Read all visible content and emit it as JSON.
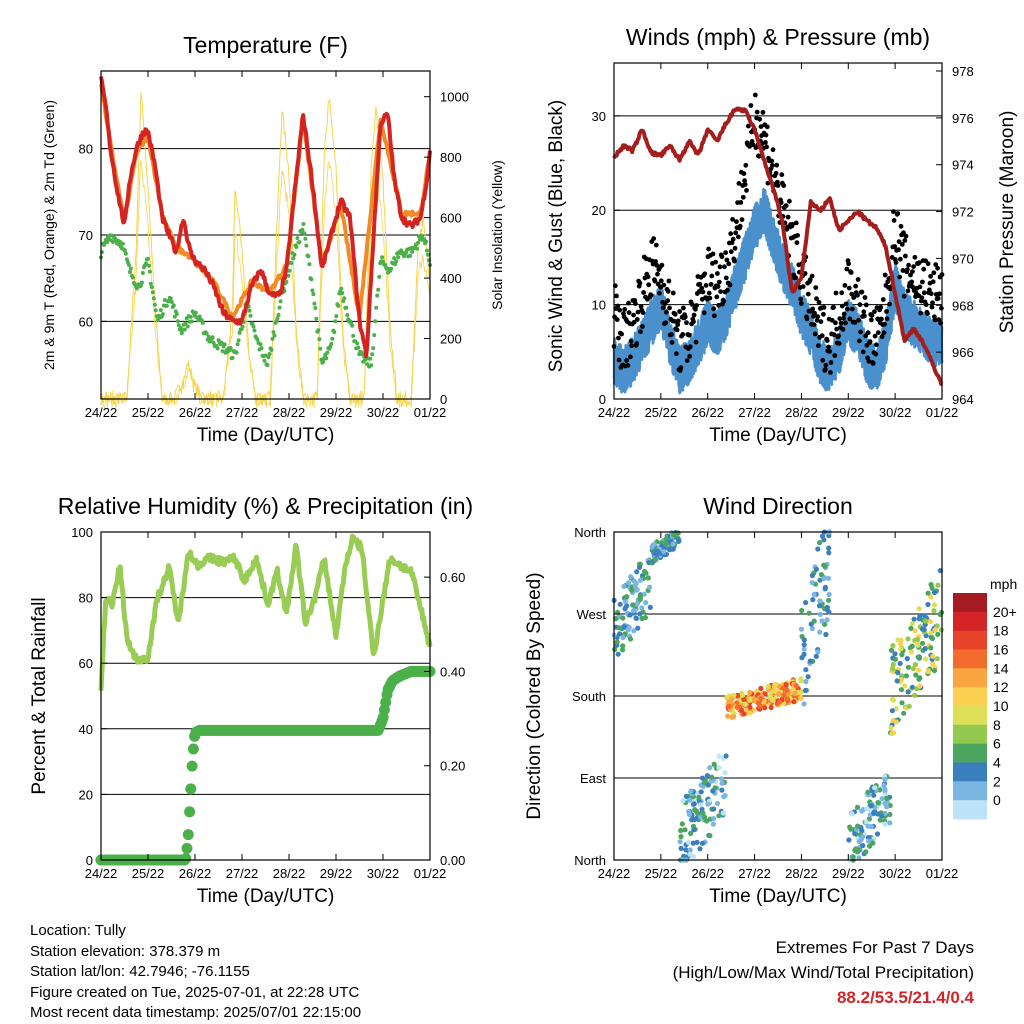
{
  "chart_data": [
    {
      "type": "line",
      "title": "Temperature (F)",
      "xlabel": "Time (Day/UTC)",
      "ylabel": "2m & 9m T (Red, Orange) & 2m Td (Green)",
      "ylabel_right": "Solar Insolation (Yellow)",
      "x_ticks": [
        "24/22",
        "25/22",
        "26/22",
        "27/22",
        "28/22",
        "29/22",
        "30/22",
        "01/22"
      ],
      "y_ticks": [
        "60",
        "70",
        "80"
      ],
      "y_ticks_right": [
        "0",
        "200",
        "400",
        "600",
        "800",
        "1000"
      ],
      "ylim": [
        51,
        89
      ],
      "ylim_right": [
        0,
        1000
      ],
      "grid": "horizontal",
      "series_colors": {
        "t2m": "#d42422",
        "t9m": "#f08a26",
        "td2m": "#4cb04a",
        "solar": "#f6d44c"
      },
      "series": [
        {
          "name": "2m T",
          "axis": "left",
          "x": [
            0,
            0.1,
            0.2,
            0.35,
            0.5,
            0.6,
            0.75,
            0.9,
            1.0,
            1.15,
            1.3,
            1.45,
            1.6,
            1.75,
            1.9,
            2.0,
            2.2,
            2.4,
            2.6,
            2.8,
            3.0,
            3.2,
            3.4,
            3.6,
            3.8,
            3.95,
            4.1,
            4.2,
            4.3,
            4.5,
            4.7,
            4.9,
            5.1,
            5.3,
            5.5,
            5.65,
            5.8,
            5.95,
            6.1,
            6.25,
            6.4,
            6.6,
            6.8,
            6.95,
            7.0
          ],
          "values": [
            88,
            85,
            80,
            75,
            71,
            76,
            80,
            82,
            82,
            78,
            72,
            70,
            68,
            72,
            68,
            67,
            66,
            64,
            61,
            60,
            60,
            64,
            66,
            63,
            63,
            66,
            74,
            79,
            84,
            76,
            66,
            70,
            74,
            72,
            60,
            56,
            70,
            83,
            84,
            76,
            72,
            71,
            72,
            77,
            80
          ]
        },
        {
          "name": "9m T",
          "axis": "left",
          "x": [
            0,
            0.2,
            0.5,
            0.75,
            1.0,
            1.3,
            1.6,
            1.9,
            2.4,
            2.8,
            3.2,
            3.6,
            3.95,
            4.3,
            4.7,
            5.1,
            5.5,
            5.95,
            6.4,
            6.8,
            7.0
          ],
          "values": [
            87.5,
            80.5,
            71.5,
            79.5,
            81.5,
            72.5,
            68.5,
            67.5,
            64.5,
            60.5,
            64.5,
            63.5,
            66.5,
            83.5,
            66.5,
            73.5,
            60.5,
            83.5,
            72.5,
            72.5,
            79.5
          ]
        },
        {
          "name": "2m Td",
          "axis": "left",
          "x": [
            0,
            0.2,
            0.45,
            0.6,
            0.8,
            1.0,
            1.2,
            1.45,
            1.7,
            2.0,
            2.3,
            2.6,
            2.85,
            3.1,
            3.3,
            3.55,
            3.8,
            4.05,
            4.3,
            4.5,
            4.7,
            4.9,
            5.1,
            5.3,
            5.5,
            5.75,
            5.95,
            6.15,
            6.35,
            6.6,
            6.85,
            7.0
          ],
          "values": [
            68,
            70,
            69,
            66,
            64,
            67,
            60,
            63,
            59,
            61,
            58,
            57,
            56,
            62,
            58,
            55,
            62,
            67,
            71,
            64,
            55,
            57,
            64,
            60,
            56,
            55,
            67,
            66,
            68,
            68,
            70,
            67
          ]
        },
        {
          "name": "Solar Insolation",
          "axis": "right",
          "x": [
            0,
            0.3,
            0.55,
            0.75,
            0.85,
            1.0,
            1.15,
            1.3,
            1.55,
            1.75,
            1.85,
            2.0,
            2.15,
            2.3,
            2.6,
            2.8,
            2.85,
            3.0,
            3.15,
            3.3,
            3.6,
            3.75,
            3.85,
            4.0,
            4.15,
            4.3,
            4.6,
            4.75,
            4.85,
            5.0,
            5.15,
            5.3,
            5.6,
            5.75,
            5.85,
            6.0,
            6.15,
            6.3,
            6.6,
            6.75,
            6.85,
            7.0
          ],
          "values": [
            0,
            0,
            0,
            500,
            1020,
            700,
            300,
            0,
            0,
            60,
            120,
            40,
            0,
            0,
            0,
            300,
            700,
            500,
            150,
            0,
            0,
            600,
            960,
            750,
            250,
            0,
            0,
            800,
            1000,
            760,
            200,
            0,
            0,
            780,
            960,
            720,
            230,
            0,
            0,
            500,
            600,
            400
          ]
        }
      ]
    },
    {
      "type": "line",
      "title": "Winds (mph) & Pressure (mb)",
      "xlabel": "Time (Day/UTC)",
      "ylabel": "Sonic Wind & Gust (Blue, Black)",
      "ylabel_right": "Station Pressure (Maroon)",
      "x_ticks": [
        "24/22",
        "25/22",
        "26/22",
        "27/22",
        "28/22",
        "29/22",
        "30/22",
        "01/22"
      ],
      "y_ticks": [
        "0",
        "10",
        "20",
        "30"
      ],
      "y_ticks_right": [
        "964",
        "966",
        "968",
        "970",
        "972",
        "974",
        "976",
        "978"
      ],
      "ylim": [
        0,
        35.6
      ],
      "ylim_right": [
        964,
        978
      ],
      "grid": "horizontal",
      "series_colors": {
        "wind": "#4a90cc",
        "gust": "#000000",
        "pressure": "#a51e1e"
      },
      "series": [
        {
          "name": "Sonic Wind",
          "axis": "left",
          "x": [
            0,
            0.2,
            0.4,
            0.6,
            0.8,
            1.0,
            1.2,
            1.4,
            1.6,
            1.8,
            2.0,
            2.2,
            2.4,
            2.6,
            2.8,
            3.0,
            3.2,
            3.4,
            3.6,
            3.8,
            4.0,
            4.2,
            4.4,
            4.6,
            4.8,
            5.0,
            5.2,
            5.4,
            5.6,
            5.8,
            6.0,
            6.2,
            6.4,
            6.6,
            6.8,
            7.0
          ],
          "values": [
            4,
            3,
            4,
            6,
            8,
            10,
            6,
            3,
            4,
            6,
            8,
            7,
            9,
            12,
            15,
            18,
            20,
            17,
            14,
            12,
            9,
            7,
            4,
            3,
            5,
            8,
            7,
            4,
            3,
            6,
            12,
            9,
            8,
            7,
            6,
            6
          ]
        },
        {
          "name": "Gust",
          "axis": "left",
          "x": [
            0,
            0.2,
            0.4,
            0.6,
            0.8,
            1.0,
            1.2,
            1.4,
            1.6,
            1.8,
            2.0,
            2.2,
            2.4,
            2.6,
            2.8,
            3.0,
            3.2,
            3.4,
            3.6,
            3.8,
            4.0,
            4.2,
            4.4,
            4.6,
            4.8,
            5.0,
            5.2,
            5.4,
            5.6,
            5.8,
            6.0,
            6.2,
            6.4,
            6.6,
            6.8,
            7.0
          ],
          "values": [
            9,
            6,
            8,
            11,
            14,
            13,
            9,
            6,
            7,
            10,
            13,
            12,
            14,
            18,
            24,
            30,
            28,
            24,
            20,
            17,
            13,
            10,
            7,
            6,
            9,
            12,
            10,
            7,
            6,
            10,
            18,
            14,
            13,
            12,
            11,
            11
          ]
        },
        {
          "name": "Station Pressure",
          "axis": "right",
          "x": [
            0,
            0.2,
            0.4,
            0.6,
            0.8,
            1.0,
            1.2,
            1.4,
            1.6,
            1.8,
            2.0,
            2.2,
            2.4,
            2.6,
            2.8,
            3.0,
            3.2,
            3.4,
            3.6,
            3.8,
            4.0,
            4.2,
            4.4,
            4.6,
            4.8,
            5.0,
            5.2,
            5.4,
            5.6,
            5.8,
            6.0,
            6.2,
            6.4,
            6.6,
            6.8,
            7.0
          ],
          "values": [
            974.3,
            974.8,
            974.6,
            975.5,
            974.5,
            974.4,
            974.8,
            974.2,
            975.0,
            974.4,
            975.5,
            975.0,
            975.8,
            976.4,
            976.3,
            975.5,
            974.2,
            973.0,
            971.5,
            968.5,
            969.2,
            972.4,
            972.0,
            972.6,
            971.2,
            971.6,
            972.0,
            971.6,
            971.3,
            970.5,
            968.5,
            966.5,
            967.0,
            966.4,
            965.5,
            964.6
          ]
        }
      ]
    },
    {
      "type": "line",
      "title": "Relative Humidity (%) & Precipitation (in)",
      "xlabel": "Time (Day/UTC)",
      "ylabel": "Percent & Total Rainfall",
      "x_ticks": [
        "24/22",
        "25/22",
        "26/22",
        "27/22",
        "28/22",
        "29/22",
        "30/22",
        "01/22"
      ],
      "y_ticks": [
        "0",
        "20",
        "40",
        "60",
        "80",
        "100"
      ],
      "y_ticks_right": [
        "0.00",
        "0.20",
        "0.40",
        "0.60"
      ],
      "ylim": [
        0,
        100
      ],
      "ylim_right": [
        0,
        0.7
      ],
      "grid": "horizontal",
      "series_colors": {
        "rh": "#99cc55",
        "precip": "#4cb04a"
      },
      "series": [
        {
          "name": "Relative Humidity",
          "axis": "left",
          "x": [
            0,
            0.1,
            0.25,
            0.4,
            0.55,
            0.7,
            0.85,
            1.0,
            1.2,
            1.45,
            1.65,
            1.85,
            2.05,
            2.3,
            2.6,
            2.85,
            3.05,
            3.3,
            3.55,
            3.75,
            3.95,
            4.15,
            4.35,
            4.55,
            4.75,
            5.0,
            5.2,
            5.35,
            5.55,
            5.8,
            5.95,
            6.15,
            6.35,
            6.6,
            6.85,
            7.0
          ],
          "values": [
            52,
            80,
            78,
            90,
            68,
            62,
            61,
            62,
            80,
            89,
            72,
            94,
            90,
            92,
            91,
            92,
            85,
            92,
            78,
            88,
            75,
            96,
            72,
            80,
            92,
            68,
            90,
            98,
            95,
            62,
            75,
            92,
            90,
            88,
            74,
            65
          ]
        },
        {
          "name": "Total Rainfall",
          "axis": "right",
          "x": [
            0,
            0.5,
            1.0,
            1.5,
            1.8,
            1.85,
            1.9,
            1.95,
            2.0,
            2.1,
            2.5,
            3.0,
            4.0,
            5.0,
            5.5,
            5.9,
            6.0,
            6.05,
            6.1,
            6.2,
            6.35,
            6.6,
            7.0
          ],
          "values": [
            0,
            0,
            0,
            0,
            0,
            0.04,
            0.13,
            0.22,
            0.27,
            0.275,
            0.275,
            0.275,
            0.275,
            0.275,
            0.275,
            0.275,
            0.3,
            0.33,
            0.36,
            0.38,
            0.39,
            0.4,
            0.4
          ]
        }
      ]
    },
    {
      "type": "scatter",
      "title": "Wind Direction",
      "xlabel": "Time (Day/UTC)",
      "ylabel": "Direction (Colored By Speed)",
      "x_ticks": [
        "24/22",
        "25/22",
        "26/22",
        "27/22",
        "28/22",
        "29/22",
        "30/22",
        "01/22"
      ],
      "y_tick_labels": [
        "North",
        "East",
        "South",
        "West",
        "North"
      ],
      "y_tick_values": [
        0,
        90,
        180,
        270,
        360
      ],
      "ylim": [
        0,
        360
      ],
      "grid": "horizontal",
      "colorbar": {
        "unit": "mph",
        "labels": [
          "20+",
          "18",
          "16",
          "14",
          "12",
          "10",
          "8",
          "6",
          "4",
          "2",
          "0"
        ],
        "colors": [
          "#a51c20",
          "#d42428",
          "#e8442a",
          "#f46b2e",
          "#f9a640",
          "#fbd050",
          "#dde056",
          "#92c94e",
          "#4aa65e",
          "#3c7fbe",
          "#7bb6e3",
          "#bfe3f6"
        ]
      },
      "points_summary": [
        {
          "x": [
            0,
            0.8
          ],
          "direction": [
            230,
            330
          ],
          "speed": [
            2,
            8
          ]
        },
        {
          "x": [
            0.8,
            1.4
          ],
          "direction": [
            330,
            360
          ],
          "speed": [
            3,
            8
          ]
        },
        {
          "x": [
            1.4,
            2.4
          ],
          "direction": [
            0,
            110
          ],
          "speed": [
            1,
            8
          ]
        },
        {
          "x": [
            2.4,
            4.0
          ],
          "direction": [
            160,
            195
          ],
          "speed": [
            10,
            20
          ]
        },
        {
          "x": [
            4.0,
            4.6
          ],
          "direction": [
            180,
            360
          ],
          "speed": [
            2,
            8
          ]
        },
        {
          "x": [
            5.0,
            5.9
          ],
          "direction": [
            0,
            90
          ],
          "speed": [
            1,
            8
          ]
        },
        {
          "x": [
            5.9,
            7.0
          ],
          "direction": [
            150,
            300
          ],
          "speed": [
            4,
            14
          ]
        }
      ]
    }
  ],
  "info": {
    "location": "Location: Tully",
    "elevation": "Station elevation: 378.379 m",
    "latlon": "Station lat/lon: 42.7946; -76.1155",
    "created": "Figure created on Tue, 2025-07-01, at 22:28 UTC",
    "recent": "Most recent data timestamp: 2025/07/01 22:15:00"
  },
  "extremes": {
    "title": "Extremes For Past 7 Days",
    "subtitle": "(High/Low/Max Wind/Total Precipitation)",
    "values": "88.2/53.5/21.4/0.4"
  }
}
